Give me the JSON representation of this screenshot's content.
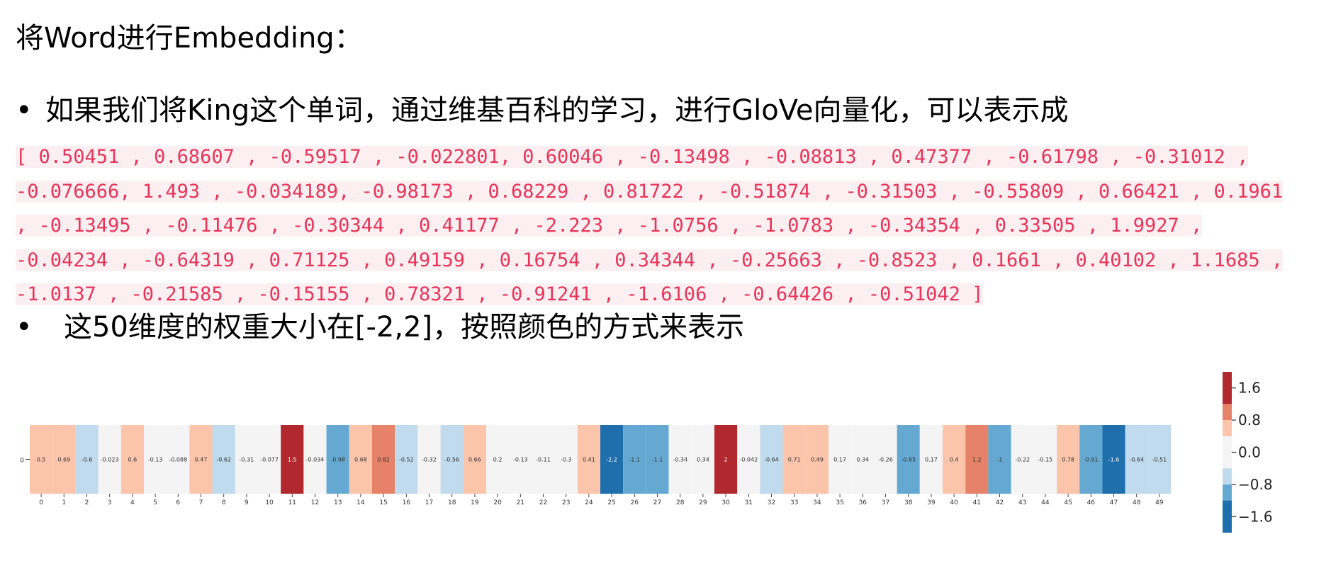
{
  "title": "将Word进行Embedding：",
  "bullets": [
    {
      "symbol": "•",
      "text": "如果我们将King这个单词，通过维基百科的学习，进行GloVe向量化，可以表示成"
    },
    {
      "symbol": "•",
      "text": "这50维度的权重大小在[-2,2]，按照颜色的方式来表示"
    }
  ],
  "code_lines": [
    "[ 0.50451 , 0.68607 , -0.59517 , -0.022801, 0.60046 , -0.13498 , -0.08813 , 0.47377 , -0.61798 , -0.31012 ,",
    "-0.076666, 1.493 , -0.034189, -0.98173 , 0.68229 , 0.81722 , -0.51874 , -0.31503 , -0.55809 , 0.66421 , 0.1961",
    ", -0.13495 , -0.11476 , -0.30344 , 0.41177 , -2.223 , -1.0756 , -1.0783 , -0.34354 , 0.33505 , 1.9927 ,",
    "-0.04234 , -0.64319 , 0.71125 , 0.49159 , 0.16754 , 0.34344 , -0.25663 , -0.8523 , 0.1661 , 0.40102 , 1.1685 ,",
    "-1.0137 , -0.21585 , -0.15155 , 0.78321 , -0.91241 , -1.6106 , -0.64426 , -0.51042 ]"
  ],
  "chart_data": {
    "type": "heatmap",
    "row_labels": [
      "0"
    ],
    "columns": [
      "0",
      "1",
      "2",
      "3",
      "4",
      "5",
      "6",
      "7",
      "8",
      "9",
      "10",
      "11",
      "12",
      "13",
      "14",
      "15",
      "16",
      "17",
      "18",
      "19",
      "20",
      "21",
      "22",
      "23",
      "24",
      "25",
      "26",
      "27",
      "28",
      "29",
      "30",
      "31",
      "32",
      "33",
      "34",
      "35",
      "36",
      "37",
      "38",
      "39",
      "40",
      "41",
      "42",
      "43",
      "44",
      "45",
      "46",
      "47",
      "48",
      "49"
    ],
    "values": [
      0.50451,
      0.68607,
      -0.59517,
      -0.022801,
      0.60046,
      -0.13498,
      -0.08813,
      0.47377,
      -0.61798,
      -0.31012,
      -0.076666,
      1.493,
      -0.034189,
      -0.98173,
      0.68229,
      0.81722,
      -0.51874,
      -0.31503,
      -0.55809,
      0.66421,
      0.1961,
      -0.13495,
      -0.11476,
      -0.30344,
      0.41177,
      -2.223,
      -1.0756,
      -1.0783,
      -0.34354,
      0.33505,
      1.9927,
      -0.04234,
      -0.64319,
      0.71125,
      0.49159,
      0.16754,
      0.34344,
      -0.25663,
      -0.8523,
      0.1661,
      0.40102,
      1.1685,
      -1.0137,
      -0.21585,
      -0.15155,
      0.78321,
      -0.91241,
      -1.6106,
      -0.64426,
      -0.51042
    ],
    "cell_labels": [
      "0.5",
      "0.69",
      "-0.6",
      "-0.023",
      "0.6",
      "-0.13",
      "-0.088",
      "0.47",
      "-0.62",
      "-0.31",
      "-0.077",
      "1.5",
      "-0.034",
      "-0.98",
      "0.68",
      "0.82",
      "-0.52",
      "-0.32",
      "-0.56",
      "0.66",
      "0.2",
      "-0.13",
      "-0.11",
      "-0.3",
      "0.41",
      "-2.2",
      "-1.1",
      "-1.1",
      "-0.34",
      "0.34",
      "2",
      "-0.042",
      "-0.64",
      "0.71",
      "0.49",
      "0.17",
      "0.34",
      "-0.26",
      "-0.85",
      "0.17",
      "0.4",
      "1.2",
      "-1",
      "-0.22",
      "-0.15",
      "0.78",
      "-0.91",
      "-1.6",
      "-0.64",
      "-0.51"
    ],
    "vmin": -2,
    "vmax": 2,
    "colormap": "RdBu_r (diverging, discrete)",
    "color_bins": [
      {
        "min": 1.2,
        "max": 2.01,
        "color": "#b2282f"
      },
      {
        "min": 0.8,
        "max": 1.2,
        "color": "#e58268"
      },
      {
        "min": 0.4,
        "max": 0.8,
        "color": "#fcc5ab"
      },
      {
        "min": -0.4,
        "max": 0.4,
        "color": "#f4f4f4"
      },
      {
        "min": -0.8,
        "max": -0.4,
        "color": "#c0dbed"
      },
      {
        "min": -1.2,
        "max": -0.8,
        "color": "#65a9d2"
      },
      {
        "min": -2.3,
        "max": -1.2,
        "color": "#1f6fad"
      }
    ],
    "colorbar_ticks": [
      {
        "label": "1.6",
        "value": 1.6
      },
      {
        "label": "0.8",
        "value": 0.8
      },
      {
        "label": "0.0",
        "value": 0.0
      },
      {
        "label": "−0.8",
        "value": -0.8
      },
      {
        "label": "−1.6",
        "value": -1.6
      }
    ],
    "colorbar_range": [
      -2,
      2
    ]
  }
}
